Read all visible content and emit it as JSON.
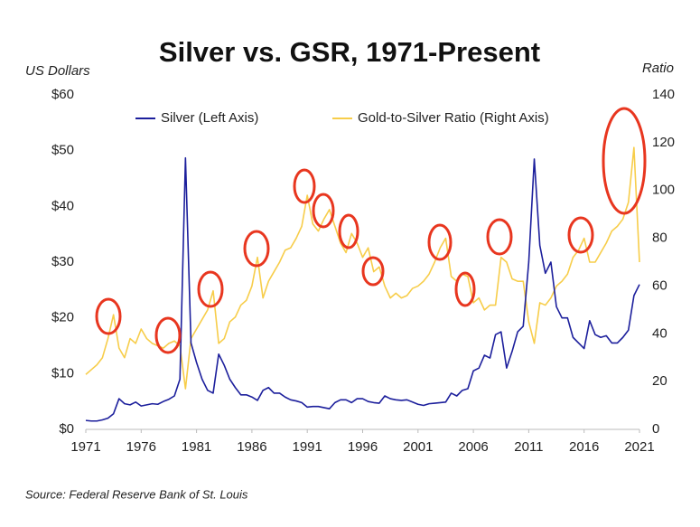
{
  "chart_data": {
    "type": "line",
    "title": "Silver vs. GSR, 1971-Present",
    "y_label": "US Dollars",
    "y2_label": "Ratio",
    "source": "Source: Federal Reserve Bank of St. Louis",
    "legend": "top",
    "grid": false,
    "xlim": [
      1971,
      2021
    ],
    "xticks": [
      1971,
      1976,
      1981,
      1986,
      1991,
      1996,
      2001,
      2006,
      2011,
      2016,
      2021
    ],
    "ylim": [
      0,
      60
    ],
    "yticks": [
      {
        "value": 0,
        "label": "$0"
      },
      {
        "value": 10,
        "label": "$10"
      },
      {
        "value": 20,
        "label": "$20"
      },
      {
        "value": 30,
        "label": "$30"
      },
      {
        "value": 40,
        "label": "$40"
      },
      {
        "value": 50,
        "label": "$50"
      },
      {
        "value": 60,
        "label": "$60"
      }
    ],
    "y2lim": [
      0,
      140
    ],
    "y2ticks": [
      0,
      20,
      40,
      60,
      80,
      100,
      120,
      140
    ],
    "x": [
      1971,
      1971.5,
      1972,
      1972.5,
      1973,
      1973.5,
      1974,
      1974.5,
      1975,
      1975.5,
      1976,
      1976.5,
      1977,
      1977.5,
      1978,
      1978.5,
      1979,
      1979.5,
      1980,
      1980.5,
      1981,
      1981.5,
      1982,
      1982.5,
      1983,
      1983.5,
      1984,
      1984.5,
      1985,
      1985.5,
      1986,
      1986.5,
      1987,
      1987.5,
      1988,
      1988.5,
      1989,
      1989.5,
      1990,
      1990.5,
      1991,
      1991.5,
      1992,
      1992.5,
      1993,
      1993.5,
      1994,
      1994.5,
      1995,
      1995.5,
      1996,
      1996.5,
      1997,
      1997.5,
      1998,
      1998.5,
      1999,
      1999.5,
      2000,
      2000.5,
      2001,
      2001.5,
      2002,
      2002.5,
      2003,
      2003.5,
      2004,
      2004.5,
      2005,
      2005.5,
      2006,
      2006.5,
      2007,
      2007.5,
      2008,
      2008.5,
      2009,
      2009.5,
      2010,
      2010.5,
      2011,
      2011.5,
      2012,
      2012.5,
      2013,
      2013.5,
      2014,
      2014.5,
      2015,
      2015.5,
      2016,
      2016.5,
      2017,
      2017.5,
      2018,
      2018.5,
      2019,
      2019.5,
      2020,
      2020.5,
      2021
    ],
    "series": [
      {
        "name": "Silver (Left Axis)",
        "color": "#1c1f9c",
        "values": [
          1.6,
          1.5,
          1.5,
          1.7,
          2.0,
          2.8,
          5.5,
          4.6,
          4.4,
          4.9,
          4.2,
          4.4,
          4.6,
          4.5,
          5.0,
          5.4,
          6.0,
          9.0,
          48.7,
          15.5,
          12.0,
          9.0,
          7.0,
          6.5,
          13.5,
          11.5,
          9.0,
          7.5,
          6.2,
          6.2,
          5.8,
          5.2,
          7.0,
          7.5,
          6.5,
          6.5,
          5.8,
          5.3,
          5.1,
          4.8,
          4.0,
          4.1,
          4.1,
          3.9,
          3.7,
          4.8,
          5.3,
          5.3,
          4.8,
          5.5,
          5.5,
          5.0,
          4.8,
          4.7,
          6.0,
          5.5,
          5.3,
          5.2,
          5.3,
          4.9,
          4.5,
          4.3,
          4.6,
          4.7,
          4.8,
          4.9,
          6.5,
          6.0,
          7.0,
          7.3,
          10.5,
          11.0,
          13.3,
          12.8,
          17.0,
          17.5,
          11.0,
          14.0,
          17.5,
          18.5,
          30.0,
          48.5,
          33.0,
          28.0,
          30.0,
          22.0,
          20.0,
          20.0,
          16.5,
          15.5,
          14.5,
          19.5,
          17.0,
          16.5,
          16.8,
          15.5,
          15.5,
          16.5,
          17.8,
          24.0,
          26.0
        ]
      },
      {
        "name": "Gold-to-Silver Ratio (Right Axis)",
        "color": "#f7cd4a",
        "axis": "y2",
        "values": [
          23,
          25,
          27,
          30,
          38,
          48,
          34,
          30,
          38,
          36,
          42,
          38,
          36,
          35,
          34,
          36,
          37,
          35,
          17,
          38,
          42,
          46,
          50,
          58,
          36,
          38,
          45,
          47,
          52,
          54,
          60,
          72,
          55,
          62,
          66,
          70,
          75,
          76,
          80,
          85,
          98,
          86,
          83,
          88,
          92,
          85,
          78,
          74,
          82,
          78,
          72,
          76,
          66,
          68,
          60,
          55,
          57,
          55,
          56,
          59,
          60,
          62,
          65,
          70,
          76,
          80,
          64,
          62,
          65,
          64,
          53,
          55,
          50,
          52,
          52,
          72,
          70,
          63,
          62,
          62,
          45,
          36,
          53,
          52,
          55,
          60,
          62,
          65,
          72,
          75,
          80,
          70,
          70,
          74,
          78,
          83,
          85,
          88,
          95,
          118,
          70
        ]
      }
    ]
  }
}
